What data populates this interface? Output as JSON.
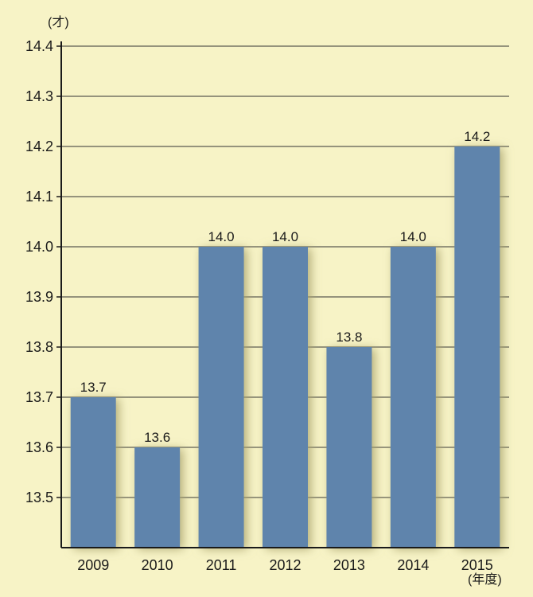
{
  "chart_data": {
    "type": "bar",
    "title": "",
    "xlabel": "(年度)",
    "ylabel": "(才)",
    "categories": [
      "2009",
      "2010",
      "2011",
      "2012",
      "2013",
      "2014",
      "2015"
    ],
    "values": [
      13.7,
      13.6,
      14.0,
      14.0,
      13.8,
      14.0,
      14.2
    ],
    "value_labels": [
      "13.7",
      "13.6",
      "14.0",
      "14.0",
      "13.8",
      "14.0",
      "14.2"
    ],
    "ylim": [
      13.4,
      14.4
    ],
    "yticks": [
      13.5,
      13.6,
      13.7,
      13.8,
      13.9,
      14.0,
      14.1,
      14.2,
      14.3,
      14.4
    ],
    "ytick_labels": [
      "13.5",
      "13.6",
      "13.7",
      "13.8",
      "13.9",
      "14.0",
      "14.1",
      "14.2",
      "14.3",
      "14.4"
    ],
    "grid": true,
    "legend": "none",
    "colors": {
      "background": "#f7f3c6",
      "bar": "#5f84ac",
      "axis": "#1a1a1a",
      "grid": "#333333",
      "shadow": "#a9a36c"
    }
  }
}
